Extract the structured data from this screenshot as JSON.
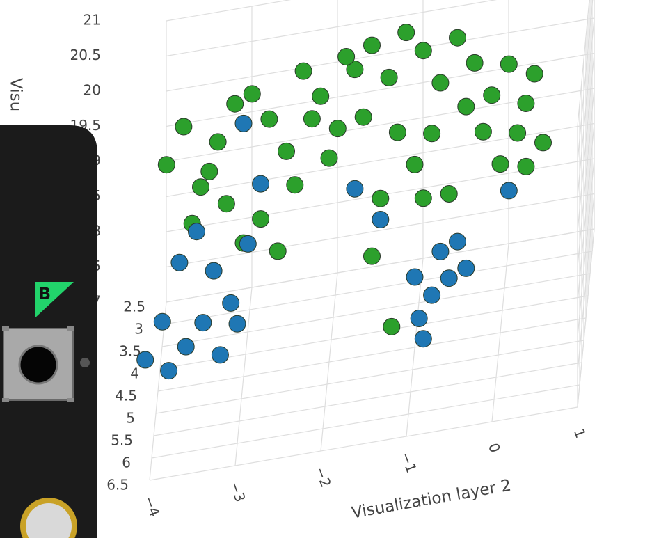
{
  "chart_data": {
    "type": "scatter3d",
    "xlabel": "Visualization layer 2",
    "zlabel": "Visu",
    "xlim": [
      -4,
      1
    ],
    "ylim": [
      2.5,
      6.5
    ],
    "zlim": [
      17,
      21
    ],
    "xticks": [
      {
        "value": -4,
        "label": "−4"
      },
      {
        "value": -3,
        "label": "−3"
      },
      {
        "value": -2,
        "label": "−2"
      },
      {
        "value": -1,
        "label": "−1"
      },
      0,
      1
    ],
    "yticks": [
      2.5,
      3,
      3.5,
      4,
      4.5,
      5,
      5.5,
      6,
      6.5
    ],
    "zticks": [
      17,
      17.5,
      18,
      18.5,
      19,
      19.5,
      20,
      20.5,
      21
    ],
    "grid": true,
    "series": [
      {
        "color": "#2ca02c",
        "x": [
          -3.9,
          -3.7,
          -3.5,
          -3.3,
          -3.1,
          -2.9,
          -2.7,
          -2.5,
          -2.3,
          -2.1,
          -1.9,
          -1.7,
          -1.5,
          -1.3,
          -1.1,
          -0.9,
          -0.7,
          -0.5,
          -0.3,
          -0.1,
          0.1,
          0.3,
          0.5,
          0.2,
          -0.2,
          -3.6,
          -3.2,
          -2.8,
          -2.4,
          -2.0,
          -1.6,
          -1.2,
          -0.8,
          -0.4,
          0.4,
          -3.0,
          -2.6,
          -1.4,
          -1.0,
          0.0,
          -0.6,
          -2.2,
          -1.8,
          -3.4,
          0.3,
          -0.9,
          -1.5,
          -1.27
        ],
        "y": [
          4.5,
          4.5,
          4.5,
          4.5,
          4.5,
          4.5,
          4.5,
          4.5,
          4.5,
          4.5,
          4.5,
          4.5,
          4.5,
          4.5,
          4.5,
          4.5,
          4.5,
          4.5,
          4.5,
          4.5,
          4.5,
          4.5,
          4.5,
          4.5,
          4.5,
          4.5,
          4.5,
          4.5,
          4.5,
          4.5,
          4.5,
          4.5,
          4.5,
          4.5,
          4.5,
          4.5,
          4.5,
          4.5,
          4.5,
          4.5,
          4.5,
          4.5,
          4.5,
          4.5,
          4.5,
          4.5,
          4.5,
          4.5
        ],
        "z": [
          20.2,
          20.7,
          19.8,
          20.4,
          20.9,
          21.0,
          20.6,
          20.1,
          21.2,
          20.8,
          20.3,
          21.1,
          21.4,
          20.9,
          21.5,
          21.2,
          20.7,
          21.3,
          20.9,
          20.4,
          20.8,
          20.2,
          19.6,
          19.8,
          19.9,
          19.3,
          19.5,
          19.2,
          19.6,
          19.9,
          20.4,
          20.1,
          20.0,
          20.3,
          20.6,
          18.9,
          18.7,
          19.2,
          19.6,
          19.4,
          19.1,
          20.5,
          21.3,
          20.0,
          19.3,
          19.1,
          18.4,
          17.35
        ]
      },
      {
        "color": "#1f77b4",
        "x": [
          -4.1,
          -3.9,
          -3.7,
          -3.5,
          -3.3,
          -3.1,
          -2.9,
          -3.6,
          -3.4,
          -3.0,
          -3.8,
          -2.8,
          -1.7,
          -1.4,
          -3.0,
          -1.0,
          -0.95,
          -0.9,
          -0.8,
          -0.7,
          -0.5,
          -0.4,
          -0.6,
          0.1,
          -3.2
        ],
        "y": [
          5.5,
          5.5,
          5.5,
          5.5,
          5.5,
          5.5,
          5.5,
          6.0,
          6.0,
          6.0,
          6.0,
          4.5,
          4.5,
          4.5,
          4.5,
          4.5,
          4.5,
          4.5,
          4.5,
          4.5,
          4.5,
          4.5,
          4.5,
          4.5,
          6.0
        ],
        "z": [
          18.1,
          18.6,
          19.4,
          19.8,
          19.2,
          18.7,
          19.5,
          18.5,
          18.8,
          18.7,
          18.2,
          19.7,
          19.4,
          18.9,
          20.6,
          18.0,
          17.4,
          17.1,
          17.7,
          18.3,
          18.4,
          18.0,
          17.9,
          19.0,
          18.3
        ]
      }
    ]
  },
  "overlay": {
    "button_label": "B"
  }
}
